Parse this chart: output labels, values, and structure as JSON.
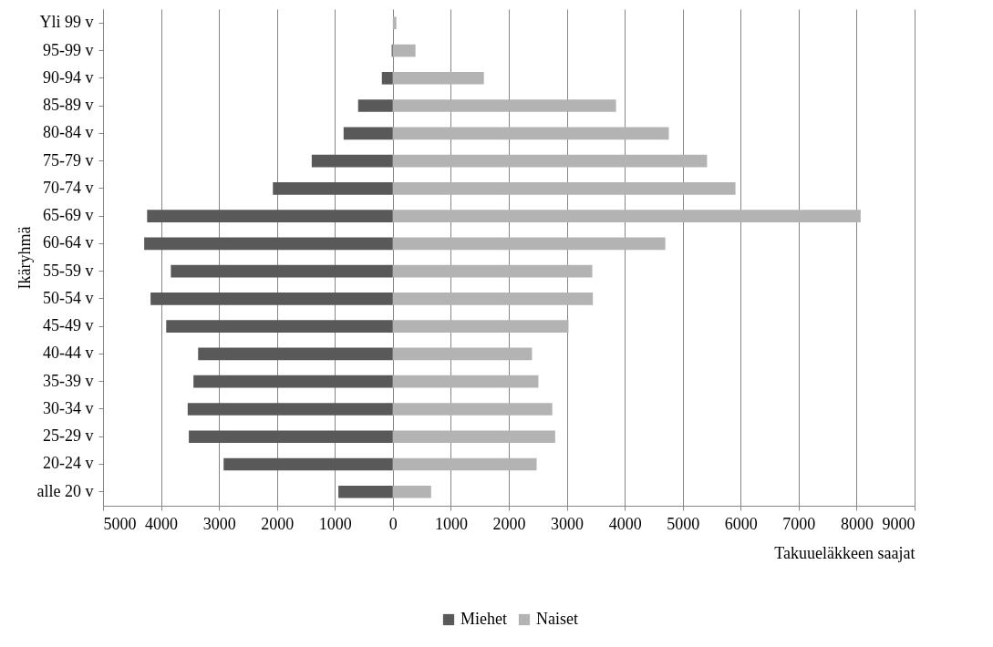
{
  "chart_data": {
    "type": "bar",
    "orientation": "horizontal",
    "stacked": true,
    "xlabel": "Takuueläkkeen saajat",
    "ylabel": "Ikäryhmä",
    "categories": [
      "Yli 99 v",
      "95-99 v",
      "90-94 v",
      "85-89 v",
      "80-84 v",
      "75-79 v",
      "70-74 v",
      "65-69 v",
      "60-64 v",
      "55-59 v",
      "50-54 v",
      "45-49 v",
      "40-44 v",
      "35-39 v",
      "30-34 v",
      "25-29 v",
      "20-24 v",
      "alle 20 v"
    ],
    "series": [
      {
        "name": "Miehet",
        "color": "#595959",
        "values": [
          0,
          -20,
          -190,
          -600,
          -850,
          -1400,
          -2070,
          -4240,
          -4290,
          -3830,
          -4180,
          -3910,
          -3360,
          -3440,
          -3540,
          -3520,
          -2920,
          -940
        ]
      },
      {
        "name": "Naiset",
        "color": "#b3b3b3",
        "values": [
          60,
          390,
          1570,
          3850,
          4760,
          5420,
          5910,
          8070,
          4700,
          3440,
          3450,
          3030,
          2400,
          2510,
          2750,
          2800,
          2480,
          660
        ]
      }
    ],
    "xlim": [
      -5000,
      9000
    ],
    "xticks": [
      {
        "value": -5000,
        "label": "5000"
      },
      {
        "value": -4000,
        "label": "4000"
      },
      {
        "value": -3000,
        "label": "3000"
      },
      {
        "value": -2000,
        "label": "2000"
      },
      {
        "value": -1000,
        "label": "1000"
      },
      0,
      1000,
      2000,
      3000,
      4000,
      5000,
      6000,
      7000,
      8000,
      9000
    ],
    "grid": "x",
    "legend": "bottom"
  }
}
